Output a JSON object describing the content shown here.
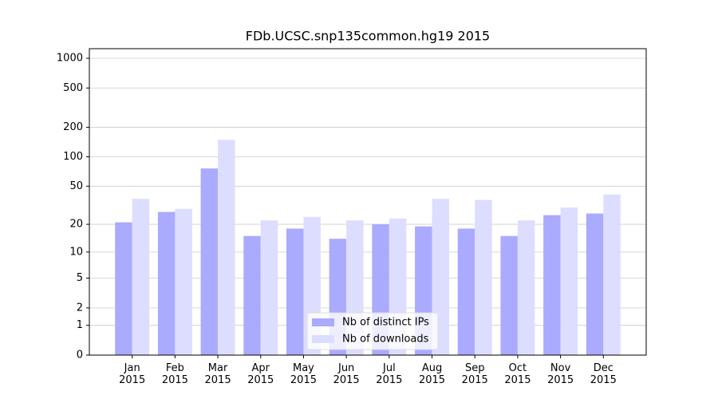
{
  "chart_data": {
    "type": "bar",
    "title": "FDb.UCSC.snp135common.hg19 2015",
    "categories": [
      "Jan\n2015",
      "Feb\n2015",
      "Mar\n2015",
      "Apr\n2015",
      "May\n2015",
      "Jun\n2015",
      "Jul\n2015",
      "Aug\n2015",
      "Sep\n2015",
      "Oct\n2015",
      "Nov\n2015",
      "Dec\n2015"
    ],
    "series": [
      {
        "name": "Nb of distinct IPs",
        "color": "#aaaaff",
        "values": [
          21,
          27,
          76,
          15,
          18,
          14,
          20,
          19,
          18,
          15,
          25,
          26
        ]
      },
      {
        "name": "Nb of downloads",
        "color": "#ddddff",
        "values": [
          37,
          29,
          149,
          22,
          24,
          22,
          23,
          37,
          36,
          22,
          30,
          41
        ]
      }
    ],
    "yscale": "log1p",
    "ylim": [
      0,
      1250
    ],
    "yticks": [
      0,
      1,
      2,
      5,
      10,
      20,
      50,
      100,
      200,
      500,
      1000
    ],
    "grid": true,
    "legend": "lower center"
  }
}
